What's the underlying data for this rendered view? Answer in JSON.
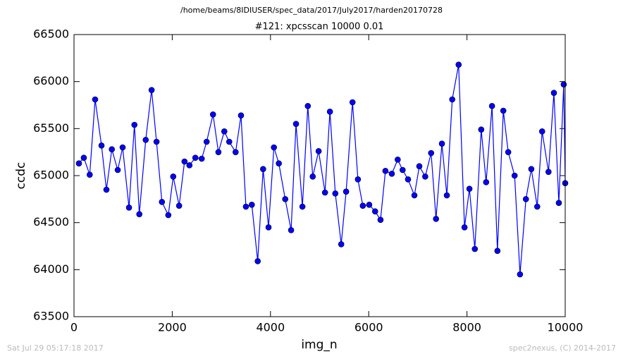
{
  "chart_data": {
    "type": "line",
    "suptitle": "/home/beams/8IDIUSER/spec_data/2017/July2017/harden20170728",
    "title": "#121: xpcsscan 10000 0.01",
    "xlabel": "img_n",
    "ylabel": "ccdc",
    "footer_left": "Sat Jul 29 05:17:18 2017",
    "footer_right": "spec2nexus, (C) 2014-2017",
    "color": "#0000ff",
    "marker_edge": "#000000",
    "x": [
      100,
      200,
      320,
      430,
      560,
      660,
      770,
      890,
      990,
      1120,
      1230,
      1330,
      1460,
      1580,
      1680,
      1790,
      1920,
      2020,
      2140,
      2250,
      2350,
      2470,
      2600,
      2700,
      2830,
      2940,
      3060,
      3160,
      3290,
      3400,
      3500,
      3620,
      3740,
      3850,
      3960,
      4070,
      4170,
      4300,
      4420,
      4520,
      4650,
      4760,
      4860,
      4980,
      5110,
      5210,
      5320,
      5440,
      5540,
      5670,
      5780,
      5880,
      6010,
      6130,
      6240,
      6340,
      6470,
      6590,
      6690,
      6800,
      6930,
      7030,
      7150,
      7270,
      7370,
      7490,
      7590,
      7700,
      7830,
      7950,
      8050,
      8160,
      8290,
      8390,
      8510,
      8620,
      8740,
      8840,
      8970,
      9080,
      9200,
      9310,
      9430,
      9530,
      9660,
      9770,
      9870,
      9970,
      10000
    ],
    "values": [
      65130,
      65190,
      65010,
      65810,
      65320,
      64850,
      65280,
      65060,
      65300,
      64660,
      65540,
      64590,
      65380,
      65910,
      65360,
      64720,
      64580,
      64990,
      64680,
      65150,
      65110,
      65190,
      65180,
      65360,
      65650,
      65250,
      65470,
      65360,
      65250,
      65640,
      64670,
      64690,
      64090,
      65070,
      64450,
      65300,
      65130,
      64750,
      64420,
      65550,
      64670,
      65740,
      64990,
      65260,
      64820,
      65680,
      64810,
      64270,
      64830,
      65780,
      64960,
      64680,
      64690,
      64620,
      64530,
      65050,
      65020,
      65170,
      65060,
      64960,
      64790,
      65100,
      64990,
      65240,
      64540,
      65340,
      64790,
      65810,
      66180,
      64450,
      64860,
      64220,
      65490,
      64930,
      65740,
      64200,
      65690,
      65250,
      65000,
      63950,
      64750,
      65070,
      64670,
      65470,
      65040,
      65880,
      64710,
      65970,
      64920
    ],
    "xlim": [
      0,
      10000
    ],
    "xticks": [
      0,
      2000,
      4000,
      6000,
      8000,
      10000
    ],
    "ylim": [
      63500,
      66500
    ],
    "yticks": [
      63500,
      64000,
      64500,
      65000,
      65500,
      66000,
      66500
    ]
  }
}
